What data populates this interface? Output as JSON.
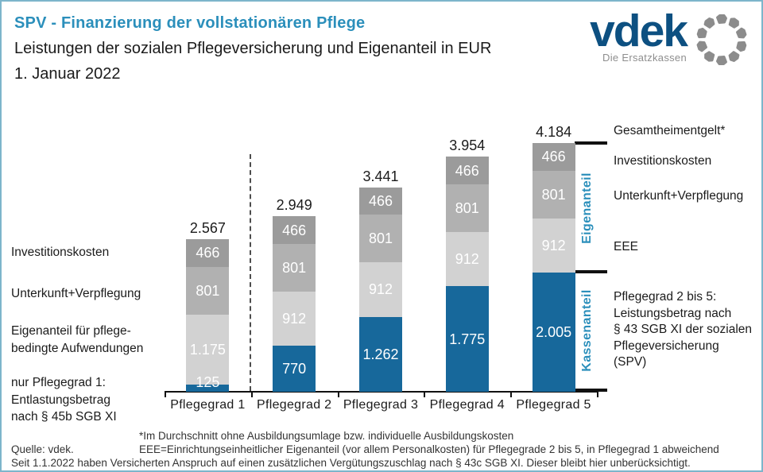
{
  "page": {
    "title": "SPV - Finanzierung der vollstationären Pflege",
    "subtitle": "Leistungen der sozialen Pflegeversicherung und Eigenanteil in EUR",
    "date": "1. Januar 2022"
  },
  "logo": {
    "word": "vdek",
    "tagline": "Die Ersatzkassen"
  },
  "colors": {
    "accent_teal": "#2B8FBB",
    "logo_navy": "#0D5081",
    "logo_gray": "#8C8C8C",
    "bar_blue": "#17689B",
    "gray_dark": "#9B9B9B",
    "gray_mid": "#B1B1B1",
    "gray_light": "#D2D2D2",
    "border_teal": "#7DB5CB",
    "bracket_black": "#111111"
  },
  "annotations": {
    "left_investitionskosten": "Investitionskosten",
    "left_unterkunft": "Unterkunft+Verpflegung",
    "left_eigenanteil": "Eigenanteil für pflege-\nbedingte Aufwendungen",
    "left_pg1": "nur Pflegegrad 1:\nEntlastungsbetrag\nnach § 45b SGB XI",
    "right_gesamtheimentgelt": "Gesamtheimentgelt*",
    "right_investitionskosten": "Investitionskosten",
    "right_unterkunft": "Unterkunft+Verpflegung",
    "right_eee": "EEE",
    "right_pg2bis5": "Pflegegrad 2 bis 5:\nLeistungsbetrag nach\n§ 43 SGB XI der sozialen\nPflegeversicherung\n(SPV)",
    "bracket_eigenanteil": "Eigenanteil",
    "bracket_kassenanteil": "Kassenanteil"
  },
  "footer": {
    "footnote1": "*Im Durchschnitt ohne Ausbildungsumlage bzw. individuelle Ausbildungskosten",
    "source": "Quelle: vdek.",
    "footnote2": "EEE=Einrichtungseinheitlicher Eigenanteil (vor allem Personalkosten) für Pflegegrade 2 bis 5, in Pflegegrad 1 abweichend",
    "footnote3": "Seit 1.1.2022 haben Versicherten Anspruch auf einen zusätzlichen Vergütungszuschlag nach § 43c SGB XI. Dieser bleibt hier unberücksichtigt."
  },
  "chart_data": {
    "type": "bar",
    "stacked": true,
    "unit": "EUR",
    "title": "SPV - Finanzierung der vollstationären Pflege, 1. Januar 2022",
    "categories": [
      "Pflegegrad 1",
      "Pflegegrad 2",
      "Pflegegrad 3",
      "Pflegegrad 4",
      "Pflegegrad 5"
    ],
    "series": [
      {
        "name": "Kassenanteil (Pflegegrad 2 bis 5: Leistungsbetrag nach § 43 SGB XI; Pflegegrad 1: Entlastungsbetrag nach § 45b SGB XI)",
        "color_key": "bar_blue",
        "values": [
          125,
          770,
          1262,
          1775,
          2005
        ],
        "labels": [
          "125",
          "770",
          "1.262",
          "1.775",
          "2.005"
        ]
      },
      {
        "name": "EEE / Eigenanteil für pflegebedingte Aufwendungen",
        "color_key": "gray_light",
        "values": [
          1175,
          912,
          912,
          912,
          912
        ],
        "labels": [
          "1.175",
          "912",
          "912",
          "912",
          "912"
        ]
      },
      {
        "name": "Unterkunft+Verpflegung",
        "color_key": "gray_mid",
        "values": [
          801,
          801,
          801,
          801,
          801
        ],
        "labels": [
          "801",
          "801",
          "801",
          "801",
          "801"
        ]
      },
      {
        "name": "Investitionskosten",
        "color_key": "gray_dark",
        "values": [
          466,
          466,
          466,
          466,
          466
        ],
        "labels": [
          "466",
          "466",
          "466",
          "466",
          "466"
        ]
      }
    ],
    "totals": [
      2567,
      2949,
      3441,
      3954,
      4184
    ],
    "total_labels": [
      "2.567",
      "2.949",
      "3.441",
      "3.954",
      "4.184"
    ],
    "ylim": [
      0,
      4400
    ],
    "grid": false,
    "legend_position": "none (annotated left/right)"
  }
}
